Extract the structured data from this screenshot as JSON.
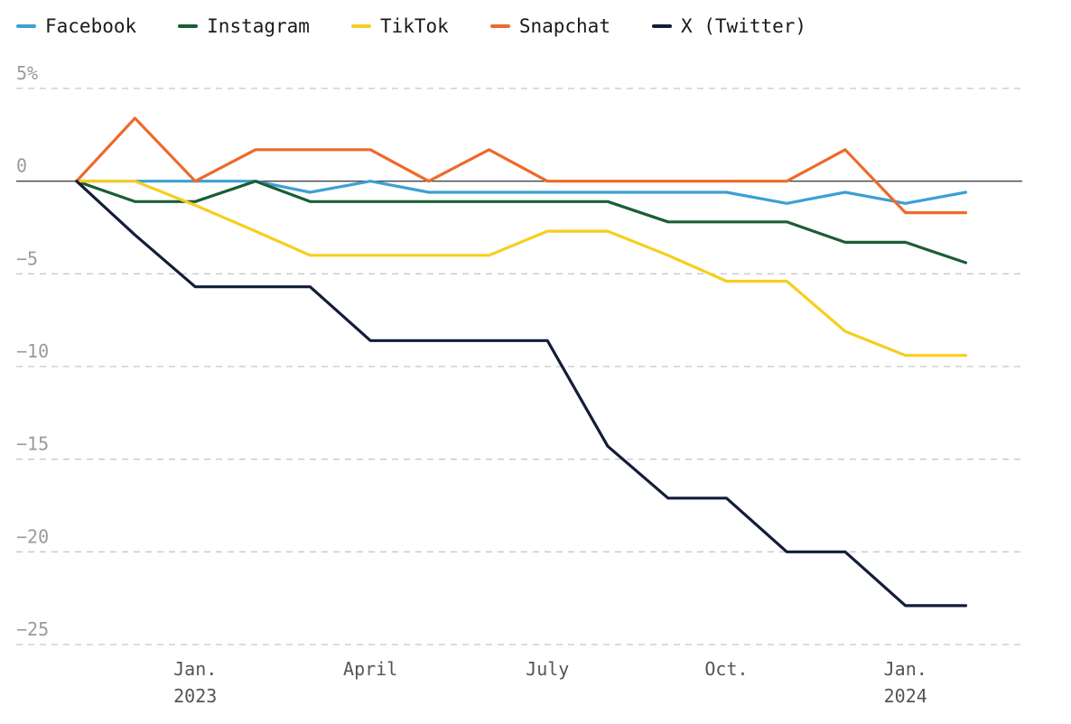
{
  "chart_data": {
    "type": "line",
    "title": "",
    "xlabel": "",
    "ylabel": "",
    "x": [
      "2022-11",
      "2022-12",
      "2023-01",
      "2023-02",
      "2023-03",
      "2023-04",
      "2023-05",
      "2023-06",
      "2023-07",
      "2023-08",
      "2023-09",
      "2023-10",
      "2023-11",
      "2023-12",
      "2024-01",
      "2024-02"
    ],
    "xlim": [
      "2022-10-01",
      "2024-03-01"
    ],
    "ylim": [
      -25,
      5
    ],
    "y_ticks": [
      5,
      0,
      -5,
      -10,
      -15,
      -20,
      -25
    ],
    "y_tick_labels": [
      "5%",
      "0",
      "−5",
      "−10",
      "−15",
      "−20",
      "−25"
    ],
    "x_ticks": [
      {
        "x": "2023-01",
        "line1": "Jan.",
        "line2": "2023"
      },
      {
        "x": "2023-04",
        "line1": "April",
        "line2": ""
      },
      {
        "x": "2023-07",
        "line1": "July",
        "line2": ""
      },
      {
        "x": "2023-10",
        "line1": "Oct.",
        "line2": ""
      },
      {
        "x": "2024-01",
        "line1": "Jan.",
        "line2": "2024"
      }
    ],
    "grid": "horizontal-dashed",
    "legend": "top-left",
    "series": [
      {
        "name": "Facebook",
        "color": "#3e9fd3",
        "values": [
          0,
          0,
          0,
          0,
          -0.6,
          0,
          -0.6,
          -0.6,
          -0.6,
          -0.6,
          -0.6,
          -0.6,
          -1.2,
          -0.6,
          -1.2,
          -0.6
        ]
      },
      {
        "name": "Instagram",
        "color": "#1a5e35",
        "values": [
          0,
          -1.1,
          -1.1,
          0,
          -1.1,
          -1.1,
          -1.1,
          -1.1,
          -1.1,
          -1.1,
          -2.2,
          -2.2,
          -2.2,
          -3.3,
          -3.3,
          -4.4
        ]
      },
      {
        "name": "TikTok",
        "color": "#f6ce1f",
        "values": [
          0,
          0,
          -1.3,
          -2.7,
          -4.0,
          -4.0,
          -4.0,
          -4.0,
          -2.7,
          -2.7,
          -4.0,
          -5.4,
          -5.4,
          -8.1,
          -9.4,
          -9.4
        ]
      },
      {
        "name": "Snapchat",
        "color": "#ee6a2a",
        "values": [
          0,
          3.4,
          0,
          1.7,
          1.7,
          1.7,
          0,
          1.7,
          0,
          0,
          0,
          0,
          0,
          1.7,
          -1.7,
          -1.7
        ]
      },
      {
        "name": "X (Twitter)",
        "color": "#121d38",
        "values": [
          0,
          -2.9,
          -5.7,
          -5.7,
          -5.7,
          -8.6,
          -8.6,
          -8.6,
          -8.6,
          -14.3,
          -17.1,
          -17.1,
          -20.0,
          -20.0,
          -22.9,
          -22.9
        ]
      }
    ]
  }
}
